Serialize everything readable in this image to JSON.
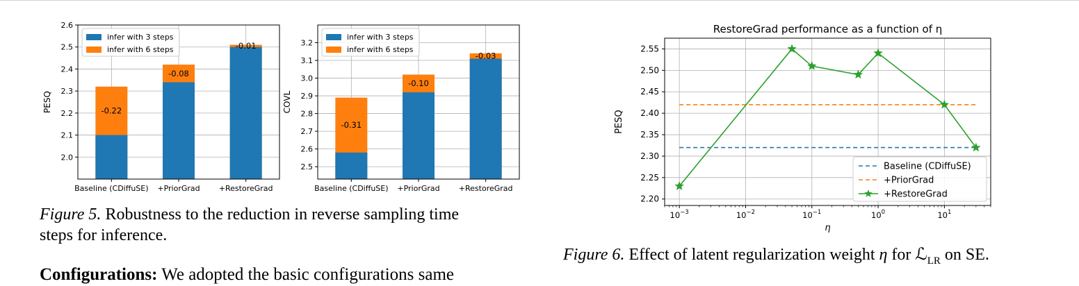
{
  "colors": {
    "blue": "#1f77b4",
    "orange": "#ff7f0e",
    "green": "#2ca02c",
    "grid": "#b0b0b0"
  },
  "fig5": {
    "caption_label": "Figure 5.",
    "caption_text": "Robustness to the reduction in reverse sampling time steps for inference.",
    "caption_line1": "Robustness to the reduction in reverse sampling time",
    "caption_line2": "steps for inference."
  },
  "fig6": {
    "caption_label": "Figure 6.",
    "caption_text": "Effect of latent regularization weight η for ℒLR on SE.",
    "caption_pre": "Effect of latent regularization weight ",
    "caption_eta": "η",
    "caption_mid": " for ",
    "caption_L": "ℒ",
    "caption_sub": "LR",
    "caption_post": " on SE."
  },
  "body_text": {
    "heading": "Configurations:",
    "rest": " We adopted the basic configurations same"
  },
  "chart_data": [
    {
      "type": "bar",
      "ylabel": "PESQ",
      "categories": [
        "Baseline (CDiffuSE)",
        "+PriorGrad",
        "+RestoreGrad"
      ],
      "ylim": [
        1.9,
        2.6
      ],
      "yticks": [
        "2.0",
        "2.1",
        "2.2",
        "2.3",
        "2.4",
        "2.5",
        "2.6"
      ],
      "legend": "top-left",
      "grid": true,
      "series": [
        {
          "name": "infer with 3 steps",
          "values": [
            2.1,
            2.34,
            2.5
          ]
        },
        {
          "name": "infer with 6 steps",
          "values": [
            2.32,
            2.42,
            2.51
          ]
        }
      ],
      "annotations": [
        "-0.22",
        "-0.08",
        "-0.01"
      ]
    },
    {
      "type": "bar",
      "ylabel": "COVL",
      "categories": [
        "Baseline (CDiffuSE)",
        "+PriorGrad",
        "+RestoreGrad"
      ],
      "ylim": [
        2.43,
        3.3
      ],
      "yticks": [
        "2.5",
        "2.6",
        "2.7",
        "2.8",
        "2.9",
        "3.0",
        "3.1",
        "3.2"
      ],
      "legend": "top-left",
      "grid": true,
      "series": [
        {
          "name": "infer with 3 steps",
          "values": [
            2.58,
            2.92,
            3.11
          ]
        },
        {
          "name": "infer with 6 steps",
          "values": [
            2.89,
            3.02,
            3.14
          ]
        }
      ],
      "annotations": [
        "-0.31",
        "-0.10",
        "-0.03"
      ]
    },
    {
      "type": "line",
      "title": "RestoreGrad performance as a function of η",
      "xlabel": "η",
      "ylabel": "PESQ",
      "xscale": "log",
      "xlim": [
        0.0006,
        50
      ],
      "ylim": [
        2.185,
        2.575
      ],
      "xticks": [
        {
          "base": "10",
          "exp": "−3",
          "value": 0.001
        },
        {
          "base": "10",
          "exp": "−2",
          "value": 0.01
        },
        {
          "base": "10",
          "exp": "−1",
          "value": 0.1
        },
        {
          "base": "10",
          "exp": "0",
          "value": 1
        },
        {
          "base": "10",
          "exp": "1",
          "value": 10
        }
      ],
      "yticks": [
        "2.20",
        "2.25",
        "2.30",
        "2.35",
        "2.40",
        "2.45",
        "2.50",
        "2.55"
      ],
      "legend": "bottom-right",
      "grid": true,
      "series": [
        {
          "name": "Baseline (CDiffuSE)",
          "style": "dashed",
          "x": [
            0.001,
            30
          ],
          "y": [
            2.32,
            2.32
          ]
        },
        {
          "name": "+PriorGrad",
          "style": "dashed",
          "x": [
            0.001,
            30
          ],
          "y": [
            2.42,
            2.42
          ]
        },
        {
          "name": "+RestoreGrad",
          "style": "solid-star",
          "x": [
            0.001,
            0.05,
            0.1,
            0.5,
            1,
            10,
            30
          ],
          "y": [
            2.23,
            2.55,
            2.51,
            2.49,
            2.54,
            2.42,
            2.32
          ]
        }
      ]
    }
  ]
}
